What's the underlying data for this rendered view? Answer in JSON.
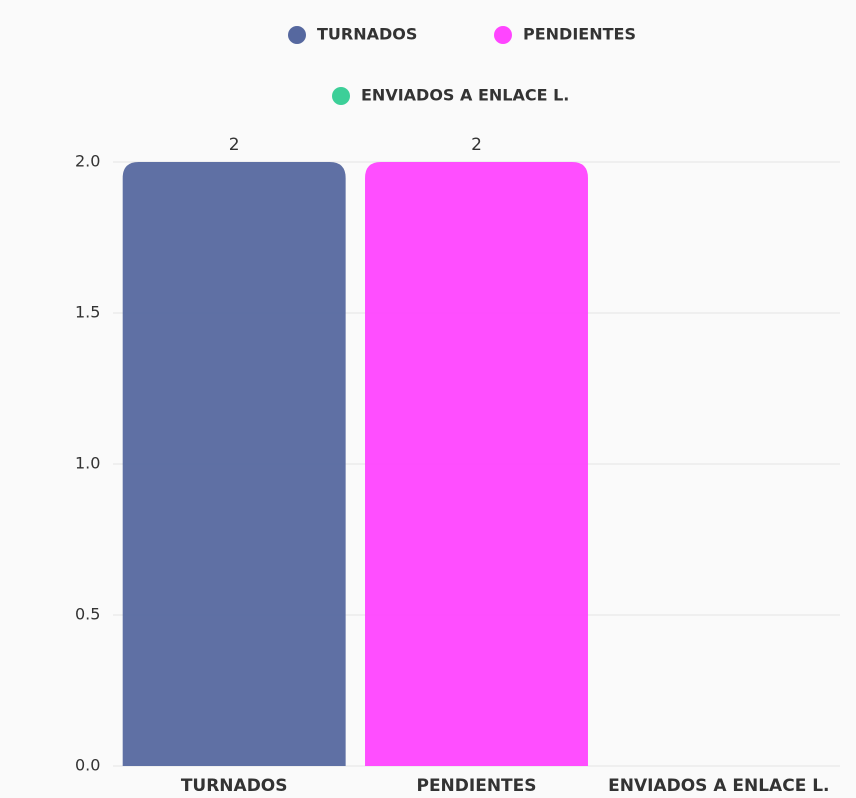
{
  "chart_data": {
    "type": "bar",
    "categories": [
      "TURNADOS",
      "PENDIENTES",
      "ENVIADOS A ENLACE L."
    ],
    "values": [
      2,
      2,
      0
    ],
    "colors": [
      "#56689f",
      "#ff45ff",
      "#3ccf98"
    ],
    "ylim": [
      0,
      2
    ],
    "yticks": [
      {
        "value": 0,
        "label": "0.0"
      },
      0.5,
      {
        "value": 1,
        "label": "1.0"
      },
      1.5,
      {
        "value": 2,
        "label": "2.0"
      }
    ],
    "grid": true,
    "legend": "top"
  }
}
